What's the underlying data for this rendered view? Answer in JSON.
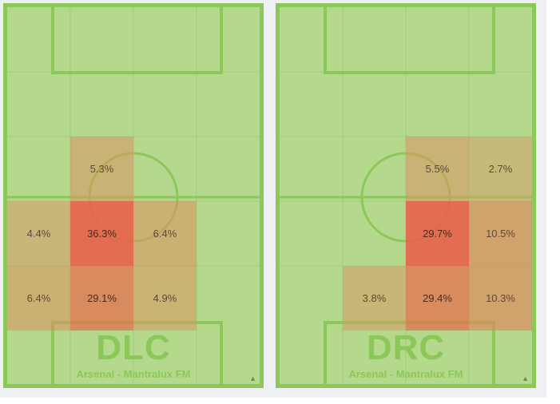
{
  "panels": [
    {
      "position": "DLC",
      "subtitle": "Arsenal - Mantralux FM",
      "cells": [
        {
          "row": 2,
          "col": 1,
          "value": "5.3%",
          "intensity": 0.3
        },
        {
          "row": 3,
          "col": 0,
          "value": "4.4%",
          "intensity": 0.25
        },
        {
          "row": 3,
          "col": 1,
          "value": "36.3%",
          "intensity": 1.0
        },
        {
          "row": 3,
          "col": 2,
          "value": "6.4%",
          "intensity": 0.35
        },
        {
          "row": 4,
          "col": 0,
          "value": "6.4%",
          "intensity": 0.35
        },
        {
          "row": 4,
          "col": 1,
          "value": "29.1%",
          "intensity": 0.75
        },
        {
          "row": 4,
          "col": 2,
          "value": "4.9%",
          "intensity": 0.28
        }
      ]
    },
    {
      "position": "DRC",
      "subtitle": "Arsenal - Mantralux FM",
      "cells": [
        {
          "row": 2,
          "col": 2,
          "value": "5.5%",
          "intensity": 0.3
        },
        {
          "row": 2,
          "col": 3,
          "value": "2.7%",
          "intensity": 0.2
        },
        {
          "row": 3,
          "col": 2,
          "value": "29.7%",
          "intensity": 1.0
        },
        {
          "row": 3,
          "col": 3,
          "value": "10.5%",
          "intensity": 0.5
        },
        {
          "row": 4,
          "col": 1,
          "value": "3.8%",
          "intensity": 0.25
        },
        {
          "row": 4,
          "col": 2,
          "value": "29.4%",
          "intensity": 0.75
        },
        {
          "row": 4,
          "col": 3,
          "value": "10.3%",
          "intensity": 0.5
        }
      ]
    }
  ],
  "colors": {
    "pitch": "#b4d98c",
    "lines": "#8cc75a",
    "heat_low": "#d9a36a",
    "heat_high": "#e8614a"
  },
  "icons": {
    "corner": "resize-triangle-icon"
  }
}
